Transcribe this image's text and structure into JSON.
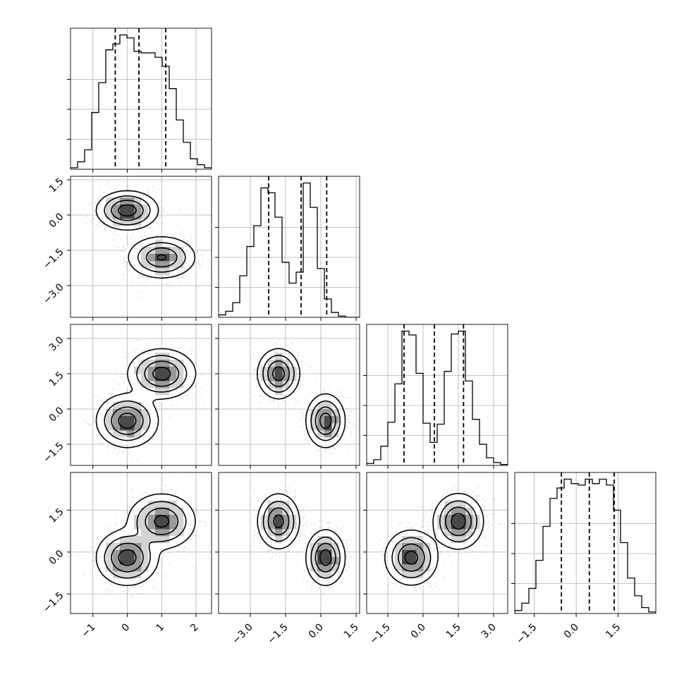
{
  "chart_data": {
    "type": "corner",
    "grid": true,
    "parameters": [
      {
        "range": [
          -1.65,
          2.45
        ],
        "ticks": [
          -1,
          0,
          1,
          2
        ],
        "tick_labels": [
          "−1",
          "0",
          "1",
          "2"
        ],
        "quantiles": [
          -0.35,
          0.34,
          1.12
        ],
        "hist": {
          "edges": [
            -1.65,
            -1.445,
            -1.24,
            -1.035,
            -0.83,
            -0.625,
            -0.42,
            -0.215,
            -0.01,
            0.195,
            0.4,
            0.605,
            0.81,
            1.015,
            1.22,
            1.425,
            1.63,
            1.835,
            2.04,
            2.245,
            2.45
          ],
          "counts": [
            1,
            5,
            13,
            38,
            58,
            80,
            84,
            90,
            88,
            79,
            78,
            78,
            75,
            69,
            54,
            33,
            18,
            7,
            3,
            1
          ]
        }
      },
      {
        "range": [
          -4.35,
          1.65
        ],
        "ticks": [
          -3.0,
          -1.5,
          0.0,
          1.5
        ],
        "tick_labels": [
          "−3.0",
          "−1.5",
          "0.0",
          "1.5"
        ],
        "quantiles": [
          -2.22,
          -0.84,
          0.25
        ],
        "hist": {
          "edges": [
            -4.35,
            -4.05,
            -3.75,
            -3.45,
            -3.15,
            -2.85,
            -2.55,
            -2.25,
            -1.95,
            -1.65,
            -1.35,
            -1.05,
            -0.75,
            -0.45,
            -0.15,
            0.15,
            0.45,
            0.75,
            1.05,
            1.35,
            1.65
          ],
          "counts": [
            2,
            5,
            12,
            34,
            58,
            75,
            106,
            102,
            82,
            45,
            28,
            37,
            110,
            90,
            40,
            15,
            4,
            1,
            0,
            0
          ]
        }
      },
      {
        "range": [
          -2.4,
          3.6
        ],
        "ticks": [
          -1.5,
          0.0,
          1.5,
          3.0
        ],
        "tick_labels": [
          "−1.5",
          "0.0",
          "1.5",
          "3.0"
        ],
        "quantiles": [
          -0.81,
          0.48,
          1.72
        ],
        "hist": {
          "edges": [
            -2.4,
            -2.1,
            -1.8,
            -1.5,
            -1.2,
            -0.9,
            -0.6,
            -0.3,
            0.0,
            0.3,
            0.6,
            0.9,
            1.2,
            1.5,
            1.8,
            2.1,
            2.4,
            2.7,
            3.0,
            3.3,
            3.6
          ],
          "counts": [
            2,
            6,
            20,
            45,
            85,
            140,
            136,
            96,
            44,
            24,
            43,
            98,
            137,
            140,
            88,
            48,
            22,
            8,
            3,
            1
          ]
        }
      },
      {
        "range": [
          -2.2,
          2.85
        ],
        "ticks": [
          -1.5,
          0.0,
          1.5
        ],
        "tick_labels": [
          "−1.5",
          "0.0",
          "1.5"
        ],
        "quantiles": [
          -0.53,
          0.47,
          1.36
        ],
        "hist": {
          "edges": [
            -2.2,
            -1.9475,
            -1.695,
            -1.4425,
            -1.19,
            -0.9375,
            -0.685,
            -0.4325,
            -0.18,
            0.0725,
            0.325,
            0.5775,
            0.83,
            1.0825,
            1.335,
            1.5875,
            1.84,
            2.0925,
            2.345,
            2.5975,
            2.85
          ],
          "counts": [
            2,
            7,
            17,
            36,
            59,
            78,
            85,
            91,
            88,
            87,
            91,
            88,
            91,
            87,
            70,
            48,
            24,
            12,
            4,
            1
          ]
        }
      }
    ],
    "clusters": [
      {
        "weight": 0.5,
        "mean": [
          0.0,
          0.2,
          -0.5,
          -0.2
        ],
        "sd": [
          0.38,
          0.35,
          0.48,
          0.42
        ]
      },
      {
        "weight": 0.5,
        "mean": [
          1.0,
          -1.8,
          1.5,
          1.1
        ],
        "sd": [
          0.42,
          0.38,
          0.45,
          0.42
        ]
      }
    ]
  }
}
